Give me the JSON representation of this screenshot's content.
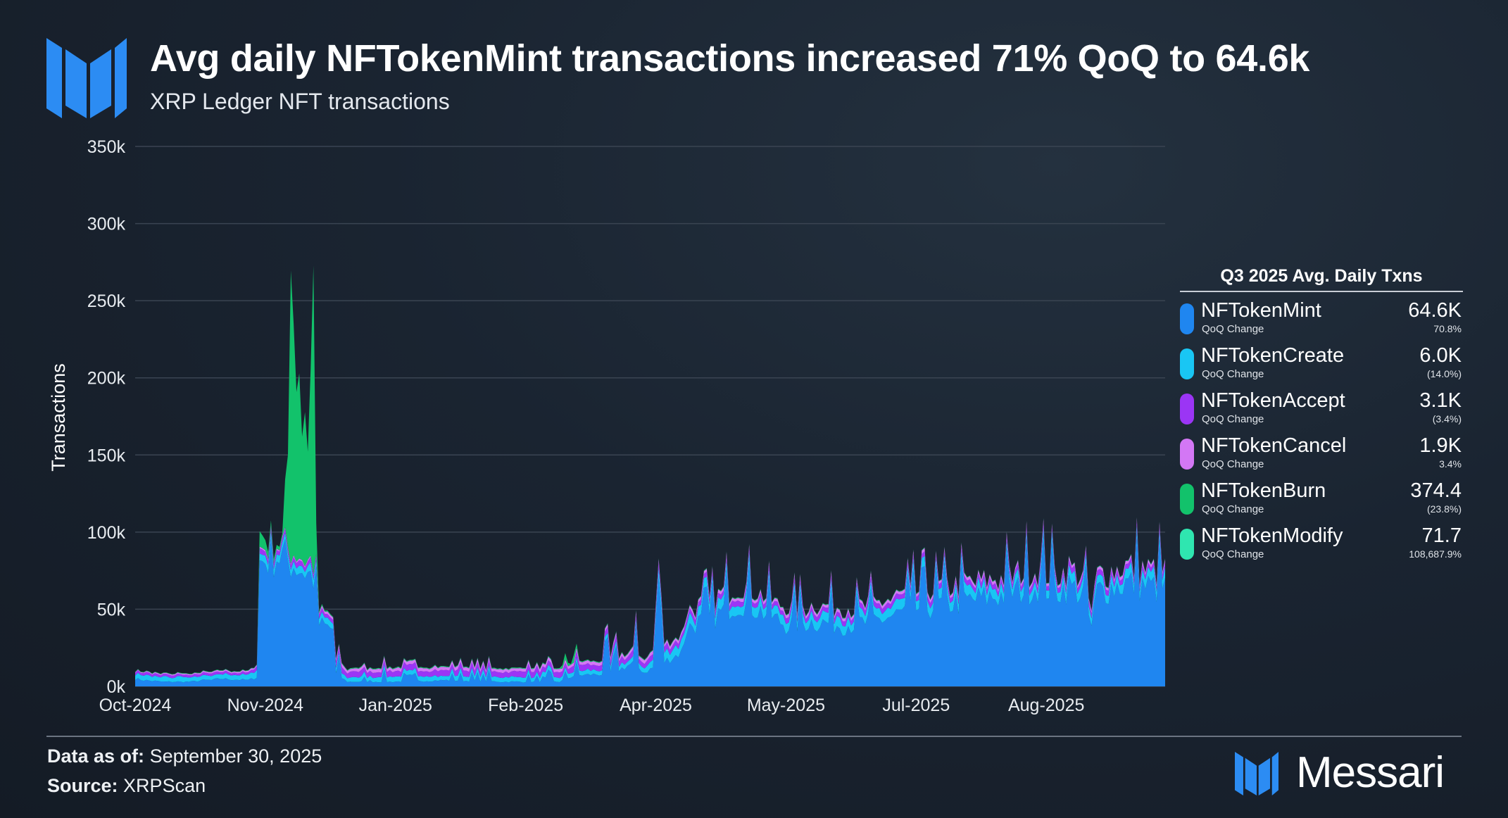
{
  "header": {
    "title": "Avg daily NFTokenMint transactions increased 71% QoQ to 64.6k",
    "subtitle": "XRP Ledger NFT transactions"
  },
  "colors": {
    "mint": "#1f86f0",
    "create": "#19c6f4",
    "accept": "#9b35f5",
    "cancel": "#d377f5",
    "burn": "#12c26b",
    "modify": "#2fe6b0",
    "gridline": "#3a4452",
    "axis_text": "#e8ecf0"
  },
  "chart_data": {
    "type": "area",
    "stacked": true,
    "ylabel": "Transactions",
    "xlabel": "",
    "ylim": [
      0,
      350000
    ],
    "y_ticks": [
      0,
      50000,
      100000,
      150000,
      200000,
      250000,
      300000,
      350000
    ],
    "y_tick_labels": [
      "0k",
      "50k",
      "100k",
      "150k",
      "200k",
      "250k",
      "300k",
      "350k"
    ],
    "x_domain_days": 365,
    "x_ticks": [
      {
        "label": "Oct-2024",
        "day": 0
      },
      {
        "label": "Nov-2024",
        "day": 46
      },
      {
        "label": "Jan-2025",
        "day": 92
      },
      {
        "label": "Feb-2025",
        "day": 138
      },
      {
        "label": "Apr-2025",
        "day": 184
      },
      {
        "label": "May-2025",
        "day": 230
      },
      {
        "label": "Jul-2025",
        "day": 276
      },
      {
        "label": "Aug-2025",
        "day": 322
      }
    ],
    "series_anchors": {
      "NFTokenMint": [
        [
          0,
          5000
        ],
        [
          3,
          4000
        ],
        [
          10,
          3000
        ],
        [
          20,
          3000
        ],
        [
          24,
          4000
        ],
        [
          27,
          4000
        ],
        [
          30,
          5000
        ],
        [
          40,
          4000
        ],
        [
          43,
          6000
        ],
        [
          44,
          80000
        ],
        [
          50,
          85000
        ],
        [
          52,
          84000
        ],
        [
          57,
          78000
        ],
        [
          62,
          72000
        ],
        [
          64,
          68000
        ],
        [
          65,
          40000
        ],
        [
          70,
          37000
        ],
        [
          71,
          8000
        ],
        [
          75,
          3000
        ],
        [
          90,
          3000
        ],
        [
          110,
          4000
        ],
        [
          130,
          3000
        ],
        [
          150,
          3000
        ],
        [
          155,
          7000
        ],
        [
          165,
          8000
        ],
        [
          170,
          10000
        ],
        [
          176,
          15000
        ],
        [
          180,
          9000
        ],
        [
          183,
          12000
        ],
        [
          185,
          70000
        ],
        [
          187,
          16000
        ],
        [
          193,
          22000
        ],
        [
          195,
          38000
        ],
        [
          200,
          42000
        ],
        [
          205,
          45000
        ],
        [
          210,
          52000
        ],
        [
          215,
          55000
        ],
        [
          222,
          48000
        ],
        [
          230,
          40000
        ],
        [
          240,
          42000
        ],
        [
          250,
          40000
        ],
        [
          258,
          41000
        ],
        [
          265,
          44000
        ],
        [
          275,
          50000
        ],
        [
          285,
          53000
        ],
        [
          292,
          55000
        ],
        [
          300,
          57000
        ],
        [
          308,
          60000
        ],
        [
          315,
          64000
        ],
        [
          320,
          66000
        ],
        [
          325,
          62000
        ],
        [
          330,
          65000
        ],
        [
          335,
          60000
        ],
        [
          338,
          38000
        ],
        [
          340,
          62000
        ],
        [
          345,
          64000
        ],
        [
          350,
          67000
        ],
        [
          355,
          66000
        ],
        [
          360,
          64000
        ],
        [
          364,
          63000
        ]
      ],
      "NFTokenCreate": [
        [
          0,
          3000
        ],
        [
          40,
          3000
        ],
        [
          44,
          5000
        ],
        [
          64,
          5000
        ],
        [
          65,
          4000
        ],
        [
          70,
          4000
        ],
        [
          71,
          3000
        ],
        [
          180,
          3000
        ],
        [
          183,
          6000
        ],
        [
          193,
          6000
        ],
        [
          260,
          6000
        ],
        [
          364,
          6000
        ]
      ],
      "NFTokenAccept": [
        [
          0,
          1500
        ],
        [
          40,
          1500
        ],
        [
          44,
          3000
        ],
        [
          64,
          3000
        ],
        [
          70,
          2500
        ],
        [
          71,
          3500
        ],
        [
          183,
          3500
        ],
        [
          193,
          3100
        ],
        [
          364,
          3100
        ]
      ],
      "NFTokenCancel": [
        [
          0,
          500
        ],
        [
          44,
          1000
        ],
        [
          64,
          1000
        ],
        [
          71,
          2000
        ],
        [
          183,
          2000
        ],
        [
          193,
          1900
        ],
        [
          364,
          1900
        ]
      ],
      "NFTokenBurn": [
        [
          0,
          300
        ],
        [
          43,
          300
        ],
        [
          44,
          10000
        ],
        [
          48,
          3000
        ],
        [
          52,
          2000
        ],
        [
          54,
          60000
        ],
        [
          55,
          190000
        ],
        [
          56,
          150000
        ],
        [
          57,
          110000
        ],
        [
          58,
          120000
        ],
        [
          59,
          80000
        ],
        [
          60,
          100000
        ],
        [
          61,
          70000
        ],
        [
          62,
          120000
        ],
        [
          63,
          200000
        ],
        [
          64,
          20000
        ],
        [
          65,
          1000
        ],
        [
          70,
          500
        ],
        [
          150,
          500
        ],
        [
          152,
          4000
        ],
        [
          154,
          500
        ],
        [
          155,
          5000
        ],
        [
          157,
          500
        ],
        [
          364,
          374
        ]
      ],
      "NFTokenModify": [
        [
          0,
          0
        ],
        [
          330,
          0
        ],
        [
          364,
          72
        ]
      ]
    },
    "legend": {
      "title": "Q3 2025 Avg. Daily Txns",
      "sub_label": "QoQ Change",
      "items": [
        {
          "name": "NFTokenMint",
          "value": "64.6K",
          "change": "70.8%",
          "color": "#1f86f0"
        },
        {
          "name": "NFTokenCreate",
          "value": "6.0K",
          "change": "(14.0%)",
          "color": "#19c6f4"
        },
        {
          "name": "NFTokenAccept",
          "value": "3.1K",
          "change": "(3.4%)",
          "color": "#9b35f5"
        },
        {
          "name": "NFTokenCancel",
          "value": "1.9K",
          "change": "3.4%",
          "color": "#d377f5"
        },
        {
          "name": "NFTokenBurn",
          "value": "374.4",
          "change": "(23.8%)",
          "color": "#12c26b"
        },
        {
          "name": "NFTokenModify",
          "value": "71.7",
          "change": "108,687.9%",
          "color": "#2fe6b0"
        }
      ]
    }
  },
  "footer": {
    "data_as_of_label": "Data as of:",
    "data_as_of_value": "September 30, 2025",
    "source_label": "Source:",
    "source_value": "XRPScan",
    "brand": "Messari"
  }
}
